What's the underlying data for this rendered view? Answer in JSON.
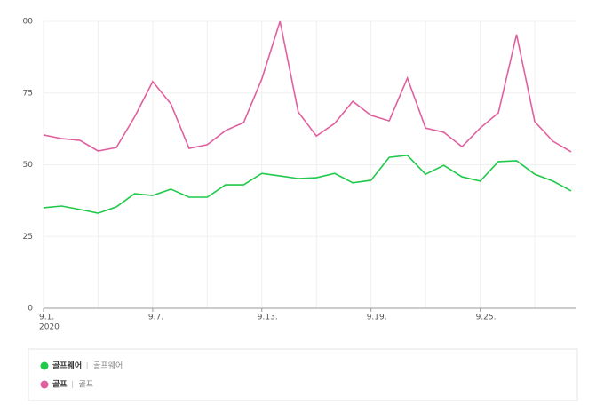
{
  "chart_data": {
    "type": "line",
    "categories": [
      "9.1.",
      null,
      null,
      null,
      null,
      null,
      "9.7.",
      null,
      null,
      null,
      null,
      null,
      "9.13.",
      null,
      null,
      null,
      null,
      null,
      "9.19.",
      null,
      null,
      null,
      null,
      null,
      "9.25.",
      null,
      null,
      null,
      null,
      null
    ],
    "year_label": "2020",
    "series": [
      {
        "name": "골프웨어",
        "keywords": "골프웨어",
        "color": "#1fc94a",
        "values": [
          35,
          35.6,
          34.4,
          33.1,
          35.3,
          39.9,
          39.3,
          41.5,
          38.7,
          38.7,
          43,
          43,
          47,
          46.1,
          45.2,
          45.5,
          47,
          43.7,
          44.6,
          52.6,
          53.3,
          46.7,
          49.8,
          45.8,
          44.3,
          51.1,
          51.4,
          46.7,
          44.3,
          40.9
        ]
      },
      {
        "name": "골프",
        "keywords": "골프",
        "color": "#e0609f",
        "values": [
          60.4,
          59.1,
          58.5,
          54.8,
          56,
          66.6,
          79,
          71.2,
          55.7,
          57,
          61.9,
          64.7,
          79.9,
          100,
          68.4,
          60,
          64.4,
          72.1,
          67.2,
          65.3,
          80.2,
          62.8,
          61.3,
          56.3,
          62.8,
          68.1,
          95.4,
          65,
          58.2,
          54.5
        ]
      }
    ],
    "ylim": [
      0,
      100
    ],
    "yticks": [
      0,
      25,
      50,
      75,
      {
        "value": 100,
        "label": "00"
      }
    ],
    "grid": true
  }
}
